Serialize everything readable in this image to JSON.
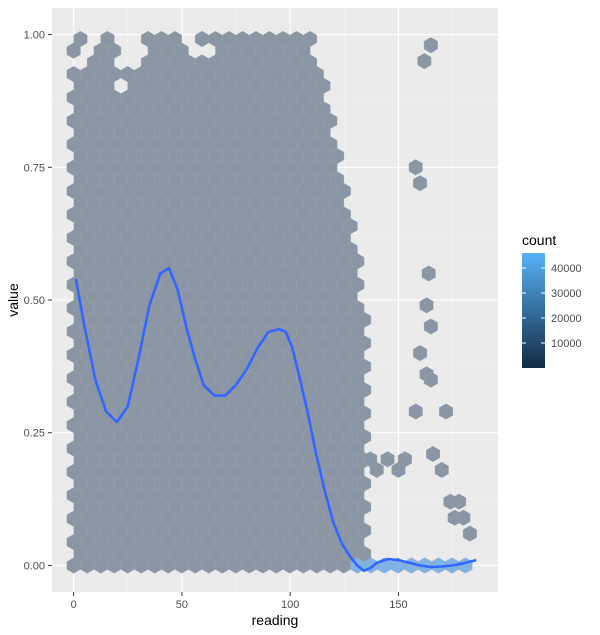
{
  "chart_data": {
    "type": "hexbin",
    "xlabel": "reading",
    "ylabel": "value",
    "xlim": [
      -10,
      196
    ],
    "ylim": [
      -0.05,
      1.05
    ],
    "x_ticks": [
      0,
      50,
      100,
      150
    ],
    "y_ticks": [
      0.0,
      0.25,
      0.5,
      0.75,
      1.0
    ],
    "x_tick_labels": [
      "0",
      "50",
      "100",
      "150"
    ],
    "y_tick_labels": [
      "0.00",
      "0.25",
      "0.50",
      "0.75",
      "1.00"
    ],
    "grid": true,
    "legend": {
      "title": "count",
      "position": "right",
      "breaks": [
        10000,
        20000,
        30000,
        40000
      ],
      "break_labels": [
        "10000",
        "20000",
        "30000",
        "40000"
      ],
      "range": [
        0,
        46000
      ],
      "low_color": "#132B43",
      "high_color": "#56B1F7"
    },
    "hex_color": "#8a96a3",
    "hex_dense_color": "#7fb3e6",
    "dense_region": {
      "reading_range": [
        0,
        130
      ],
      "value_range": [
        0,
        1.0
      ]
    },
    "dense_top_edge": [
      [
        0,
        1.0
      ],
      [
        110,
        1.0
      ],
      [
        116,
        0.92
      ],
      [
        120,
        0.82
      ],
      [
        124,
        0.72
      ],
      [
        128,
        0.64
      ],
      [
        133,
        0.55
      ],
      [
        134,
        0.5
      ],
      [
        135,
        0.42
      ],
      [
        135,
        0.18
      ]
    ],
    "gaps": [
      [
        5,
        0.96
      ],
      [
        8,
        0.98
      ],
      [
        20,
        1.0
      ],
      [
        25,
        0.96
      ],
      [
        28,
        0.98
      ],
      [
        54,
        1.0
      ],
      [
        59,
        0.97
      ],
      [
        24,
        0.9
      ],
      [
        110,
        0.97
      ]
    ],
    "scatter_hexes": [
      [
        137,
        0.2
      ],
      [
        140,
        0.18
      ],
      [
        145,
        0.2
      ],
      [
        150,
        0.18
      ],
      [
        153,
        0.2
      ],
      [
        158,
        0.29
      ],
      [
        160,
        0.4
      ],
      [
        163,
        0.36
      ],
      [
        165,
        0.35
      ],
      [
        163,
        0.49
      ],
      [
        164,
        0.55
      ],
      [
        165,
        0.45
      ],
      [
        166,
        0.21
      ],
      [
        170,
        0.18
      ],
      [
        172,
        0.29
      ],
      [
        174,
        0.12
      ],
      [
        176,
        0.09
      ],
      [
        178,
        0.12
      ],
      [
        180,
        0.09
      ],
      [
        183,
        0.06
      ],
      [
        158,
        0.75
      ],
      [
        160,
        0.72
      ],
      [
        162,
        0.95
      ],
      [
        165,
        0.98
      ]
    ],
    "bottom_row_value": 0.0,
    "bottom_row_reading_range": [
      0,
      186
    ],
    "smooth_line": {
      "color": "#3366FF",
      "x": [
        1,
        5,
        10,
        15,
        20,
        25,
        30,
        35,
        40,
        44,
        48,
        52,
        56,
        60,
        65,
        70,
        75,
        80,
        85,
        90,
        95,
        98,
        101,
        104,
        108,
        112,
        116,
        120,
        124,
        128,
        131,
        134,
        137,
        140,
        145,
        150,
        155,
        160,
        165,
        170,
        175,
        180,
        186
      ],
      "y": [
        0.54,
        0.45,
        0.35,
        0.29,
        0.27,
        0.3,
        0.39,
        0.49,
        0.55,
        0.56,
        0.52,
        0.45,
        0.39,
        0.34,
        0.32,
        0.32,
        0.34,
        0.37,
        0.41,
        0.44,
        0.445,
        0.44,
        0.41,
        0.36,
        0.29,
        0.21,
        0.14,
        0.08,
        0.04,
        0.015,
        0.0,
        -0.01,
        -0.005,
        0.005,
        0.012,
        0.01,
        0.005,
        0.0,
        -0.003,
        -0.002,
        0.0,
        0.004,
        0.01
      ]
    }
  }
}
